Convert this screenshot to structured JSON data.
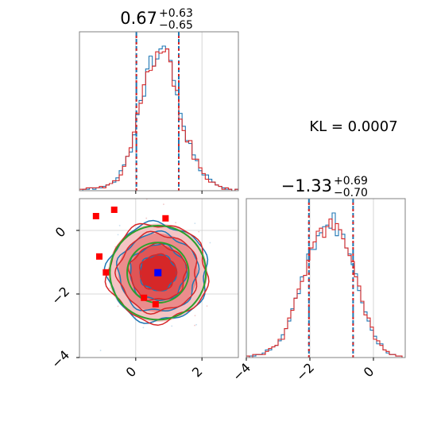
{
  "chart_data": {
    "type": "corner",
    "colors": {
      "series_a": "#1f77b4",
      "series_b": "#d62728",
      "fit": "#2ca02c",
      "marker_truth": "#0000ff",
      "marker_points": "#ff0000",
      "grid": "#cccccc"
    },
    "annotation": "KL = 0.0007",
    "parameters": [
      {
        "id": "p1",
        "title_main": "0.67",
        "title_plus": "+0.63",
        "title_minus": "−0.65",
        "median": 0.67,
        "quantile_lines": [
          0.02,
          1.3
        ],
        "range": [
          -1.7,
          3.1
        ],
        "ticks": [
          0,
          2
        ],
        "tick_labels": [
          "0",
          "2"
        ]
      },
      {
        "id": "p2",
        "title_main": "−1.33",
        "title_plus": "+0.69",
        "title_minus": "−0.70",
        "median": -1.33,
        "quantile_lines": [
          -2.03,
          -0.64
        ],
        "range": [
          -4.0,
          1.0
        ],
        "ticks": [
          -4,
          -2,
          0
        ],
        "tick_labels": [
          "−4",
          "−2",
          "0"
        ]
      }
    ],
    "histograms": [
      {
        "param": "p1",
        "series": [
          {
            "name": "",
            "color": "series_a",
            "values": [
              0,
              1,
              1,
              2,
              1,
              2,
              2,
              3,
              4,
              5,
              6,
              9,
              14,
              18,
              24,
              27,
              39,
              53,
              63,
              66,
              85,
              94,
              87,
              92,
              99,
              101,
              99,
              91,
              77,
              67,
              54,
              45,
              35,
              33,
              25,
              21,
              14,
              11,
              11,
              8,
              6,
              4,
              3,
              2,
              1,
              1,
              0,
              1
            ]
          },
          {
            "name": "",
            "color": "series_b",
            "values": [
              1,
              1,
              2,
              2,
              2,
              2,
              3,
              2,
              4,
              5,
              7,
              7,
              11,
              17,
              24,
              30,
              41,
              54,
              61,
              74,
              83,
              84,
              87,
              97,
              96,
              97,
              99,
              90,
              73,
              70,
              50,
              42,
              34,
              35,
              22,
              22,
              16,
              12,
              8,
              6,
              6,
              4,
              3,
              1,
              2,
              1,
              0,
              1
            ]
          }
        ]
      },
      {
        "param": "p2",
        "series": [
          {
            "name": "",
            "color": "series_a",
            "values": [
              1,
              1,
              1,
              2,
              2,
              3,
              5,
              5,
              7,
              8,
              11,
              15,
              19,
              24,
              32,
              39,
              42,
              53,
              54,
              68,
              71,
              71,
              80,
              82,
              86,
              87,
              85,
              95,
              80,
              84,
              81,
              72,
              68,
              61,
              55,
              44,
              36,
              30,
              24,
              18,
              14,
              9,
              9,
              5,
              3,
              2,
              2,
              1,
              1,
              0
            ]
          },
          {
            "name": "",
            "color": "series_b",
            "values": [
              1,
              0,
              2,
              2,
              2,
              2,
              4,
              6,
              7,
              8,
              12,
              12,
              19,
              26,
              31,
              39,
              45,
              50,
              54,
              64,
              72,
              76,
              83,
              85,
              79,
              86,
              91,
              84,
              88,
              84,
              78,
              72,
              67,
              63,
              53,
              47,
              37,
              28,
              26,
              20,
              12,
              11,
              8,
              5,
              4,
              2,
              2,
              1,
              1,
              0
            ]
          }
        ]
      }
    ],
    "joint": {
      "center": [
        0.67,
        -1.33
      ],
      "contour_radii": [
        0.55,
        0.85,
        1.2,
        1.5
      ],
      "fill_colors": [
        "#d62728",
        "#e05556",
        "#eb8c8c",
        "#f4c4c4"
      ],
      "fit_radii": [
        0.93,
        1.45
      ],
      "truth_marker": [
        0.67,
        -1.33
      ],
      "red_markers": [
        [
          -1.2,
          0.45
        ],
        [
          -0.65,
          0.65
        ],
        [
          0.9,
          0.38
        ],
        [
          -1.1,
          -0.82
        ],
        [
          -0.9,
          -1.32
        ],
        [
          0.25,
          -2.12
        ],
        [
          0.6,
          -2.32
        ]
      ]
    }
  }
}
